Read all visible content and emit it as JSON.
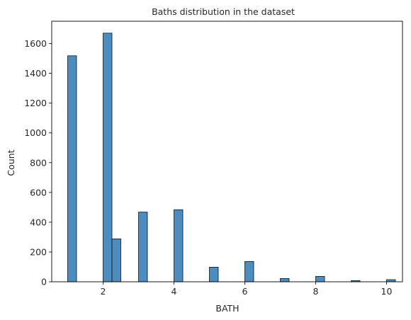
{
  "chart_data": {
    "type": "bar",
    "subtype": "histogram",
    "title": "Baths distribution in the dataset",
    "xlabel": "BATH",
    "ylabel": "Count",
    "xlim": [
      0.55,
      10.45
    ],
    "ylim": [
      0,
      1750
    ],
    "x_ticks": [
      2,
      4,
      6,
      8,
      10
    ],
    "x_tick_labels": [
      "2",
      "4",
      "6",
      "8",
      "10"
    ],
    "y_ticks": [
      0,
      200,
      400,
      600,
      800,
      1000,
      1200,
      1400,
      1600
    ],
    "y_tick_labels": [
      "0",
      "200",
      "400",
      "600",
      "800",
      "1000",
      "1200",
      "1400",
      "1600"
    ],
    "bin_width": 0.25,
    "bars": [
      {
        "x_start": 1.0,
        "count": 1518
      },
      {
        "x_start": 2.0,
        "count": 1670
      },
      {
        "x_start": 2.25,
        "count": 288
      },
      {
        "x_start": 3.0,
        "count": 468
      },
      {
        "x_start": 4.0,
        "count": 484
      },
      {
        "x_start": 5.0,
        "count": 98
      },
      {
        "x_start": 6.0,
        "count": 136
      },
      {
        "x_start": 7.0,
        "count": 22
      },
      {
        "x_start": 8.0,
        "count": 36
      },
      {
        "x_start": 9.0,
        "count": 8
      },
      {
        "x_start": 10.0,
        "count": 14
      }
    ],
    "bar_color": "#4c8cbf",
    "edge_color": "#111111",
    "grid": false,
    "legend": "none"
  }
}
